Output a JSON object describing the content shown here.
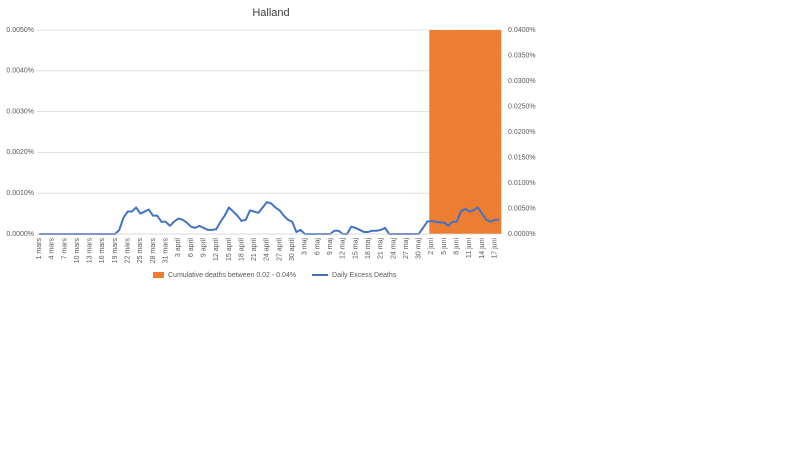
{
  "chart_data": {
    "type": "combo",
    "title": "Halland",
    "categories": [
      "1 mars",
      null,
      null,
      "4 mars",
      null,
      null,
      "7 mars",
      null,
      null,
      "10 mars",
      null,
      null,
      "13 mars",
      null,
      null,
      "16 mars",
      null,
      null,
      "19 mars",
      null,
      null,
      "22 mars",
      null,
      null,
      "25 mars",
      null,
      null,
      "28 mars",
      null,
      null,
      "31 mars",
      null,
      null,
      "3 april",
      null,
      null,
      "6 april",
      null,
      null,
      "9 april",
      null,
      null,
      "12 april",
      null,
      null,
      "15 april",
      null,
      null,
      "18 april",
      null,
      null,
      "21 april",
      null,
      null,
      "24 april",
      null,
      null,
      "27 april",
      null,
      null,
      "30 april",
      null,
      null,
      "3 maj",
      null,
      null,
      "6 maj",
      null,
      null,
      "9 maj",
      null,
      null,
      "12 maj",
      null,
      null,
      "15 maj",
      null,
      null,
      "18 maj",
      null,
      null,
      "21 maj",
      null,
      null,
      "24 maj",
      null,
      null,
      "27 maj",
      null,
      null,
      "30 maj",
      null,
      null,
      "2 juni",
      null,
      null,
      "5 juni",
      null,
      null,
      "8 juni",
      null,
      null,
      "11 juni",
      null,
      null,
      "14 juni",
      null,
      null,
      "17 juni",
      null
    ],
    "series": [
      {
        "name": "Cumulative deaths between 0.02 - 0.04%",
        "type": "bar",
        "axis": "y2",
        "color": "#ed7d31",
        "values": [
          null,
          null,
          null,
          null,
          null,
          null,
          null,
          null,
          null,
          null,
          null,
          null,
          null,
          null,
          null,
          null,
          null,
          null,
          null,
          null,
          null,
          null,
          null,
          null,
          null,
          null,
          null,
          null,
          null,
          null,
          null,
          null,
          null,
          null,
          null,
          null,
          null,
          null,
          null,
          null,
          null,
          null,
          null,
          null,
          null,
          null,
          null,
          null,
          null,
          null,
          null,
          null,
          null,
          null,
          null,
          null,
          null,
          null,
          null,
          null,
          null,
          null,
          null,
          null,
          null,
          null,
          null,
          null,
          null,
          null,
          null,
          null,
          null,
          null,
          null,
          null,
          null,
          null,
          null,
          null,
          null,
          null,
          null,
          null,
          null,
          null,
          null,
          null,
          null,
          null,
          null,
          null,
          null,
          0.04,
          0.04,
          0.04,
          0.04,
          0.04,
          0.04,
          0.04,
          0.04,
          0.04,
          0.04,
          0.04,
          0.04,
          0.04,
          0.04,
          0.04,
          0.04,
          0.04
        ]
      },
      {
        "name": "Daily Excess Deaths",
        "type": "line",
        "color": "#4472c4",
        "values": [
          0,
          0,
          0,
          0,
          0,
          0,
          0,
          0,
          0,
          0,
          0,
          0,
          0,
          0,
          0,
          0,
          0,
          0,
          0,
          0.0001,
          0.0004,
          0.00055,
          0.00055,
          0.00065,
          0.0005,
          0.00055,
          0.0006,
          0.00045,
          0.00045,
          0.0003,
          0.0003,
          0.0002,
          0.0003,
          0.00038,
          0.00035,
          0.00028,
          0.00018,
          0.00015,
          0.0002,
          0.00015,
          0.0001,
          0.0001,
          0.00012,
          0.0003,
          0.00045,
          0.00065,
          0.00055,
          0.00045,
          0.00032,
          0.00035,
          0.00058,
          0.00055,
          0.00052,
          0.00065,
          0.00078,
          0.00075,
          0.00065,
          0.00058,
          0.00045,
          0.00035,
          0.0003,
          5e-05,
          0.0001,
          0,
          0,
          0,
          0,
          0,
          0,
          0,
          8e-05,
          8e-05,
          0,
          0,
          0.00018,
          0.00015,
          0.0001,
          5e-05,
          5e-05,
          8e-05,
          8e-05,
          0.0001,
          0.00015,
          0,
          0,
          0,
          0,
          0,
          0,
          0,
          0,
          0.00015,
          0.0003,
          0.00032,
          0.0003,
          0.00028,
          0.00028,
          0.0002,
          0.0003,
          0.0003,
          0.00055,
          0.00062,
          0.00055,
          0.00058,
          0.00065,
          0.0005,
          0.00035,
          0.0003,
          0.00035,
          0.00035
        ]
      }
    ],
    "ylim": [
      0,
      0.005
    ],
    "yticks": [
      {
        "value": 0,
        "label": "0.0000%"
      },
      {
        "value": 0.001,
        "label": "0.0010%"
      },
      {
        "value": 0.002,
        "label": "0.0020%"
      },
      {
        "value": 0.003,
        "label": "0.0030%"
      },
      {
        "value": 0.004,
        "label": "0.0040%"
      },
      {
        "value": 0.005,
        "label": "0.0050%"
      }
    ],
    "y2lim": [
      0,
      0.04
    ],
    "y2ticks": [
      {
        "value": 0,
        "label": "0.0000%"
      },
      {
        "value": 0.005,
        "label": "0.0050%"
      },
      {
        "value": 0.01,
        "label": "0.0100%"
      },
      {
        "value": 0.015,
        "label": "0.0150%"
      },
      {
        "value": 0.02,
        "label": "0.0200%"
      },
      {
        "value": 0.025,
        "label": "0.0250%"
      },
      {
        "value": 0.03,
        "label": "0.0300%"
      },
      {
        "value": 0.035,
        "label": "0.0350%"
      },
      {
        "value": 0.04,
        "label": "0.0400%"
      }
    ],
    "grid": true,
    "legend": "bottom"
  }
}
